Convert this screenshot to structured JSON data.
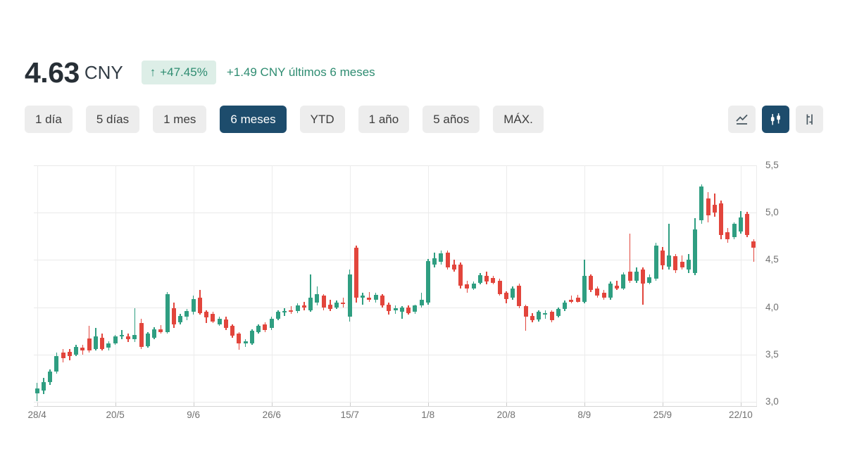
{
  "header": {
    "price": "4.63",
    "currency": "CNY",
    "badge": {
      "arrow": "↑",
      "change_pct": "+47.45%"
    },
    "change_text": "+1.49 CNY últimos 6 meses"
  },
  "range_buttons": [
    {
      "id": "1-dia",
      "label": "1 día",
      "active": false
    },
    {
      "id": "5-dias",
      "label": "5 días",
      "active": false
    },
    {
      "id": "1-mes",
      "label": "1 mes",
      "active": false
    },
    {
      "id": "6-meses",
      "label": "6 meses",
      "active": true
    },
    {
      "id": "ytd",
      "label": "YTD",
      "active": false
    },
    {
      "id": "1-ano",
      "label": "1 año",
      "active": false
    },
    {
      "id": "5-anos",
      "label": "5 años",
      "active": false
    },
    {
      "id": "max",
      "label": "MÁX.",
      "active": false
    }
  ],
  "chart_type_buttons": [
    {
      "name": "line-chart",
      "active": false
    },
    {
      "name": "candlestick-chart",
      "active": true
    },
    {
      "name": "ohlc-chart",
      "active": false
    }
  ],
  "colors": {
    "up_green": "#2f9e81",
    "down_red": "#e2453c",
    "accent_dark_blue": "#1d4c6c",
    "badge_bg": "#ddeee7",
    "teal_text": "#2e8c71",
    "button_bg": "#ededed",
    "grid": "#e9e9e9",
    "axis_text": "#717171"
  },
  "chart_data": {
    "type": "candlestick",
    "currency": "CNY",
    "period": "6 meses",
    "grid": true,
    "y_axis_side": "right",
    "ylim": [
      3.0,
      5.5
    ],
    "y_tick_values": [
      5.5,
      5.0,
      4.5,
      4.0,
      3.5,
      3.0
    ],
    "y_tick_labels": [
      "5,5",
      "5,0",
      "4,5",
      "4,0",
      "3,5",
      "3,0"
    ],
    "x_tick_labels": [
      "28/4",
      "20/5",
      "9/6",
      "26/6",
      "15/7",
      "1/8",
      "20/8",
      "8/9",
      "25/9",
      "22/10"
    ],
    "x_tick_indices": [
      0,
      12,
      24,
      36,
      48,
      60,
      72,
      84,
      96,
      108
    ],
    "ohlc_format": [
      "open",
      "high",
      "low",
      "close"
    ],
    "candles": [
      [
        3.09,
        3.2,
        3.01,
        3.14
      ],
      [
        3.12,
        3.25,
        3.08,
        3.21
      ],
      [
        3.21,
        3.34,
        3.18,
        3.32
      ],
      [
        3.32,
        3.52,
        3.3,
        3.48
      ],
      [
        3.52,
        3.56,
        3.42,
        3.46
      ],
      [
        3.53,
        3.56,
        3.44,
        3.48
      ],
      [
        3.5,
        3.6,
        3.48,
        3.58
      ],
      [
        3.57,
        3.6,
        3.5,
        3.54
      ],
      [
        3.67,
        3.8,
        3.52,
        3.54
      ],
      [
        3.56,
        3.78,
        3.54,
        3.69
      ],
      [
        3.68,
        3.72,
        3.54,
        3.56
      ],
      [
        3.57,
        3.64,
        3.54,
        3.62
      ],
      [
        3.62,
        3.71,
        3.6,
        3.69
      ],
      [
        3.7,
        3.76,
        3.66,
        3.71
      ],
      [
        3.69,
        3.72,
        3.63,
        3.66
      ],
      [
        3.66,
        3.99,
        3.63,
        3.71
      ],
      [
        3.83,
        3.88,
        3.56,
        3.58
      ],
      [
        3.59,
        3.74,
        3.57,
        3.72
      ],
      [
        3.68,
        3.79,
        3.66,
        3.77
      ],
      [
        3.77,
        3.81,
        3.72,
        3.74
      ],
      [
        3.74,
        4.16,
        3.72,
        4.14
      ],
      [
        3.99,
        4.05,
        3.78,
        3.82
      ],
      [
        3.84,
        3.93,
        3.82,
        3.91
      ],
      [
        3.9,
        3.98,
        3.86,
        3.96
      ],
      [
        3.95,
        4.12,
        3.92,
        4.09
      ],
      [
        4.1,
        4.18,
        3.92,
        3.94
      ],
      [
        3.95,
        3.97,
        3.83,
        3.89
      ],
      [
        3.93,
        3.95,
        3.83,
        3.85
      ],
      [
        3.82,
        3.9,
        3.8,
        3.88
      ],
      [
        3.87,
        3.9,
        3.76,
        3.78
      ],
      [
        3.8,
        3.82,
        3.68,
        3.7
      ],
      [
        3.72,
        3.74,
        3.55,
        3.62
      ],
      [
        3.62,
        3.66,
        3.58,
        3.64
      ],
      [
        3.62,
        3.77,
        3.6,
        3.75
      ],
      [
        3.74,
        3.82,
        3.72,
        3.8
      ],
      [
        3.82,
        3.84,
        3.74,
        3.76
      ],
      [
        3.78,
        3.9,
        3.76,
        3.88
      ],
      [
        3.88,
        3.97,
        3.86,
        3.95
      ],
      [
        3.95,
        3.99,
        3.91,
        3.96
      ],
      [
        3.97,
        4.01,
        3.93,
        3.95
      ],
      [
        3.96,
        4.04,
        3.94,
        4.02
      ],
      [
        4.02,
        4.06,
        3.97,
        4.0
      ],
      [
        3.97,
        4.35,
        3.95,
        4.1
      ],
      [
        4.05,
        4.22,
        4.02,
        4.14
      ],
      [
        4.12,
        4.14,
        3.97,
        4.0
      ],
      [
        4.03,
        4.08,
        3.96,
        3.98
      ],
      [
        4.0,
        4.07,
        3.98,
        4.05
      ],
      [
        4.05,
        4.1,
        4.0,
        4.04
      ],
      [
        3.9,
        4.4,
        3.85,
        4.35
      ],
      [
        4.63,
        4.65,
        4.05,
        4.1
      ],
      [
        4.1,
        4.15,
        4.03,
        4.12
      ],
      [
        4.1,
        4.16,
        4.06,
        4.08
      ],
      [
        4.08,
        4.15,
        4.05,
        4.13
      ],
      [
        4.12,
        4.14,
        4.0,
        4.02
      ],
      [
        4.03,
        4.05,
        3.92,
        3.96
      ],
      [
        3.97,
        4.02,
        3.93,
        3.99
      ],
      [
        3.95,
        4.01,
        3.88,
        4.0
      ],
      [
        4.0,
        4.02,
        3.92,
        3.94
      ],
      [
        3.95,
        4.03,
        3.93,
        4.02
      ],
      [
        4.02,
        4.15,
        4.0,
        4.08
      ],
      [
        4.05,
        4.51,
        4.03,
        4.49
      ],
      [
        4.45,
        4.58,
        4.42,
        4.52
      ],
      [
        4.48,
        4.6,
        4.45,
        4.57
      ],
      [
        4.58,
        4.6,
        4.4,
        4.42
      ],
      [
        4.45,
        4.5,
        4.38,
        4.4
      ],
      [
        4.45,
        4.47,
        4.2,
        4.23
      ],
      [
        4.24,
        4.28,
        4.15,
        4.2
      ],
      [
        4.2,
        4.27,
        4.18,
        4.25
      ],
      [
        4.26,
        4.36,
        4.24,
        4.34
      ],
      [
        4.33,
        4.38,
        4.24,
        4.27
      ],
      [
        4.31,
        4.33,
        4.24,
        4.26
      ],
      [
        4.28,
        4.3,
        4.12,
        4.14
      ],
      [
        4.15,
        4.17,
        4.04,
        4.09
      ],
      [
        4.1,
        4.22,
        4.08,
        4.2
      ],
      [
        4.23,
        4.25,
        3.99,
        4.01
      ],
      [
        4.01,
        4.03,
        3.75,
        3.9
      ],
      [
        3.91,
        3.94,
        3.84,
        3.86
      ],
      [
        3.87,
        3.97,
        3.85,
        3.95
      ],
      [
        3.92,
        3.97,
        3.88,
        3.94
      ],
      [
        3.95,
        3.97,
        3.84,
        3.86
      ],
      [
        3.91,
        4.0,
        3.89,
        3.98
      ],
      [
        3.98,
        4.07,
        3.96,
        4.05
      ],
      [
        4.08,
        4.12,
        4.04,
        4.06
      ],
      [
        4.1,
        4.13,
        4.05,
        4.06
      ],
      [
        4.06,
        4.5,
        4.04,
        4.33
      ],
      [
        4.33,
        4.35,
        4.16,
        4.18
      ],
      [
        4.2,
        4.22,
        4.1,
        4.12
      ],
      [
        4.15,
        4.18,
        4.08,
        4.1
      ],
      [
        4.1,
        4.27,
        4.08,
        4.25
      ],
      [
        4.23,
        4.28,
        4.18,
        4.2
      ],
      [
        4.2,
        4.37,
        4.18,
        4.35
      ],
      [
        4.38,
        4.78,
        4.26,
        4.28
      ],
      [
        4.28,
        4.42,
        4.26,
        4.38
      ],
      [
        4.4,
        4.42,
        4.03,
        4.25
      ],
      [
        4.26,
        4.35,
        4.24,
        4.32
      ],
      [
        4.3,
        4.68,
        4.28,
        4.65
      ],
      [
        4.6,
        4.64,
        4.4,
        4.44
      ],
      [
        4.43,
        4.88,
        4.4,
        4.55
      ],
      [
        4.54,
        4.56,
        4.36,
        4.39
      ],
      [
        4.48,
        4.55,
        4.4,
        4.42
      ],
      [
        4.4,
        4.56,
        4.36,
        4.5
      ],
      [
        4.36,
        4.94,
        4.34,
        4.82
      ],
      [
        4.92,
        5.3,
        4.88,
        5.28
      ],
      [
        5.15,
        5.22,
        4.9,
        4.97
      ],
      [
        5.08,
        5.2,
        4.96,
        5.0
      ],
      [
        5.1,
        5.13,
        4.72,
        4.76
      ],
      [
        4.79,
        4.84,
        4.68,
        4.72
      ],
      [
        4.74,
        4.9,
        4.72,
        4.88
      ],
      [
        4.8,
        5.02,
        4.78,
        4.95
      ],
      [
        4.99,
        5.01,
        4.74,
        4.76
      ],
      [
        4.7,
        4.72,
        4.48,
        4.63
      ]
    ],
    "up_color": "#2f9e81",
    "down_color": "#e2453c"
  }
}
